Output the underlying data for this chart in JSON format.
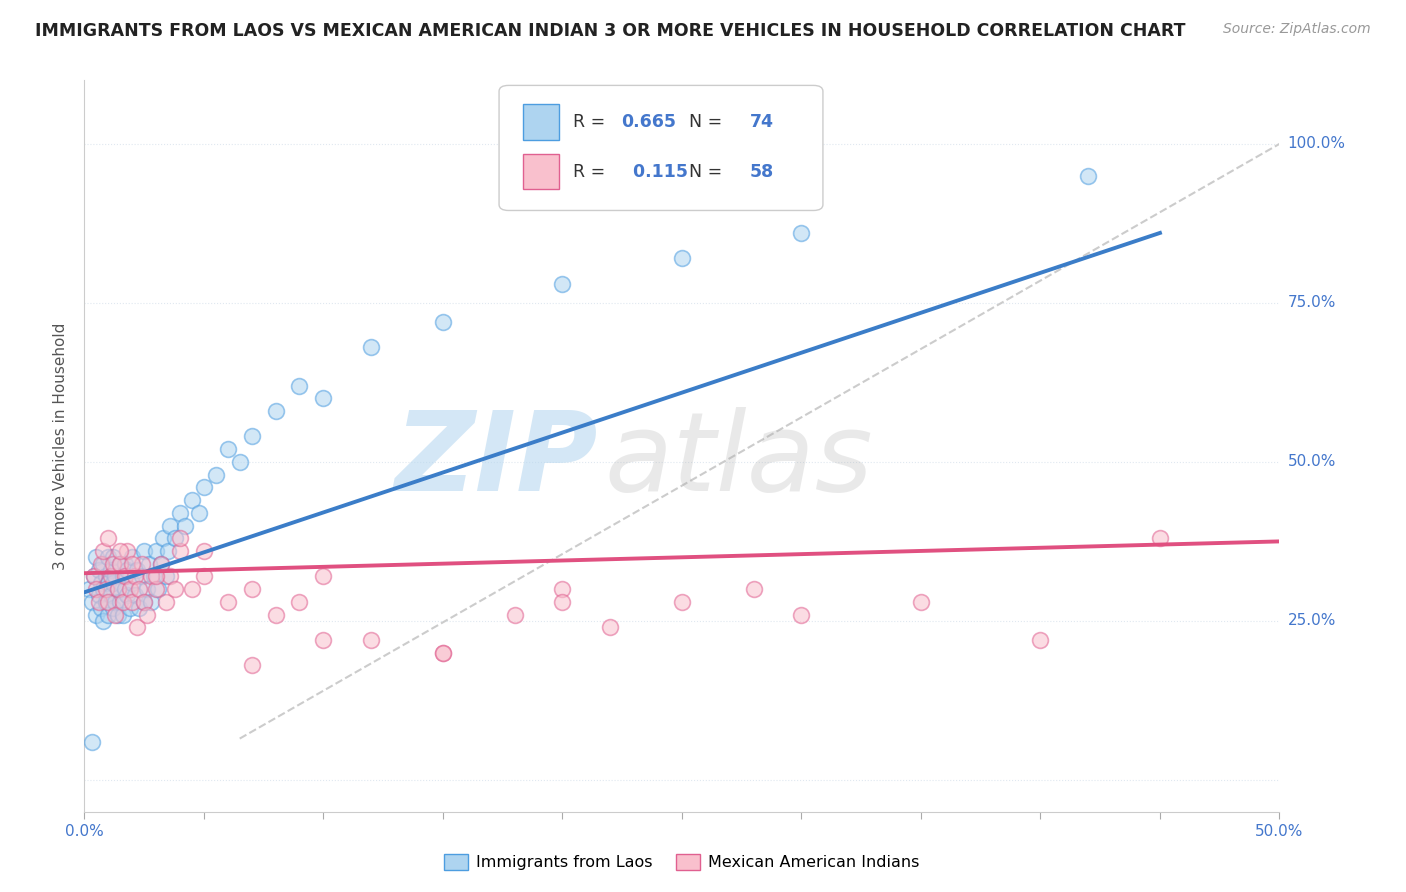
{
  "title": "IMMIGRANTS FROM LAOS VS MEXICAN AMERICAN INDIAN 3 OR MORE VEHICLES IN HOUSEHOLD CORRELATION CHART",
  "source": "Source: ZipAtlas.com",
  "ylabel": "3 or more Vehicles in Household",
  "xlim": [
    0.0,
    0.5
  ],
  "ylim": [
    -0.05,
    1.1
  ],
  "xtick_positions": [
    0.0,
    0.05,
    0.1,
    0.15,
    0.2,
    0.25,
    0.3,
    0.35,
    0.4,
    0.45,
    0.5
  ],
  "ytick_positions": [
    0.0,
    0.25,
    0.5,
    0.75,
    1.0
  ],
  "yticklabels_right": [
    "",
    "25.0%",
    "50.0%",
    "75.0%",
    "100.0%"
  ],
  "blue_R": 0.665,
  "blue_N": 74,
  "pink_R": 0.115,
  "pink_N": 58,
  "blue_fill_color": "#aed4f0",
  "pink_fill_color": "#f9c0cd",
  "blue_edge_color": "#4d9de0",
  "pink_edge_color": "#e06090",
  "blue_line_color": "#3b7dc8",
  "pink_line_color": "#e05080",
  "blue_line": [
    0.0,
    0.45,
    0.295,
    0.86
  ],
  "pink_line": [
    0.0,
    0.5,
    0.325,
    0.375
  ],
  "diag_color": "#cccccc",
  "diag_line": [
    0.065,
    0.5,
    0.065,
    1.0
  ],
  "blue_x": [
    0.002,
    0.003,
    0.004,
    0.005,
    0.005,
    0.006,
    0.006,
    0.007,
    0.007,
    0.008,
    0.008,
    0.008,
    0.009,
    0.009,
    0.01,
    0.01,
    0.01,
    0.011,
    0.011,
    0.012,
    0.012,
    0.012,
    0.013,
    0.013,
    0.014,
    0.014,
    0.015,
    0.015,
    0.016,
    0.016,
    0.017,
    0.017,
    0.018,
    0.018,
    0.019,
    0.02,
    0.02,
    0.021,
    0.022,
    0.023,
    0.024,
    0.025,
    0.025,
    0.026,
    0.027,
    0.028,
    0.029,
    0.03,
    0.031,
    0.032,
    0.033,
    0.034,
    0.035,
    0.036,
    0.038,
    0.04,
    0.042,
    0.045,
    0.048,
    0.05,
    0.055,
    0.06,
    0.065,
    0.07,
    0.08,
    0.09,
    0.1,
    0.12,
    0.15,
    0.2,
    0.25,
    0.3,
    0.42,
    0.003
  ],
  "blue_y": [
    0.3,
    0.28,
    0.32,
    0.26,
    0.35,
    0.29,
    0.33,
    0.27,
    0.31,
    0.25,
    0.3,
    0.34,
    0.28,
    0.32,
    0.26,
    0.31,
    0.35,
    0.29,
    0.33,
    0.27,
    0.31,
    0.35,
    0.28,
    0.32,
    0.26,
    0.3,
    0.34,
    0.28,
    0.32,
    0.26,
    0.3,
    0.34,
    0.29,
    0.33,
    0.27,
    0.31,
    0.35,
    0.29,
    0.33,
    0.27,
    0.32,
    0.28,
    0.36,
    0.3,
    0.34,
    0.28,
    0.32,
    0.36,
    0.3,
    0.34,
    0.38,
    0.32,
    0.36,
    0.4,
    0.38,
    0.42,
    0.4,
    0.44,
    0.42,
    0.46,
    0.48,
    0.52,
    0.5,
    0.54,
    0.58,
    0.62,
    0.6,
    0.68,
    0.72,
    0.78,
    0.82,
    0.86,
    0.95,
    0.06
  ],
  "pink_x": [
    0.004,
    0.005,
    0.006,
    0.007,
    0.008,
    0.009,
    0.01,
    0.011,
    0.012,
    0.013,
    0.014,
    0.015,
    0.016,
    0.017,
    0.018,
    0.019,
    0.02,
    0.021,
    0.022,
    0.023,
    0.024,
    0.025,
    0.026,
    0.028,
    0.03,
    0.032,
    0.034,
    0.036,
    0.038,
    0.04,
    0.045,
    0.05,
    0.06,
    0.07,
    0.08,
    0.09,
    0.1,
    0.12,
    0.15,
    0.18,
    0.2,
    0.22,
    0.25,
    0.28,
    0.3,
    0.35,
    0.4,
    0.45,
    0.01,
    0.015,
    0.02,
    0.03,
    0.04,
    0.05,
    0.07,
    0.1,
    0.15,
    0.2
  ],
  "pink_y": [
    0.32,
    0.3,
    0.28,
    0.34,
    0.36,
    0.3,
    0.28,
    0.32,
    0.34,
    0.26,
    0.3,
    0.34,
    0.28,
    0.32,
    0.36,
    0.3,
    0.28,
    0.32,
    0.24,
    0.3,
    0.34,
    0.28,
    0.26,
    0.32,
    0.3,
    0.34,
    0.28,
    0.32,
    0.3,
    0.36,
    0.3,
    0.32,
    0.28,
    0.3,
    0.26,
    0.28,
    0.32,
    0.22,
    0.2,
    0.26,
    0.3,
    0.24,
    0.28,
    0.3,
    0.26,
    0.28,
    0.22,
    0.38,
    0.38,
    0.36,
    0.34,
    0.32,
    0.38,
    0.36,
    0.18,
    0.22,
    0.2,
    0.28
  ],
  "marker_size": 130,
  "bg_color": "#ffffff",
  "grid_color": "#e0e8f0",
  "legend_color_R": "#333333",
  "legend_color_val": "#4477cc",
  "legend_color_N": "#333333",
  "legend_color_Nval": "#4477cc"
}
